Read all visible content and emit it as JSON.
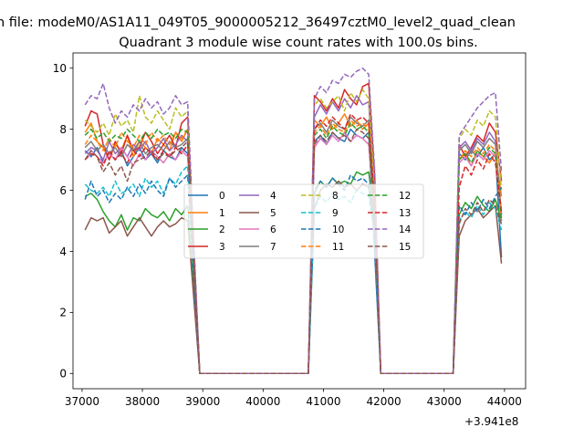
{
  "figure": {
    "suptitle": "n file: modeM0/AS1A11_049T05_9000005212_36497cztM0_level2_quad_clean",
    "title": "Quadrant 3 module wise count rates with 100.0s bins.",
    "offset_label": "+3.941e8"
  },
  "chart_data": {
    "type": "line",
    "title": "Quadrant 3 module wise count rates with 100.0s bins.",
    "xlabel": "",
    "ylabel": "",
    "x_offset_label": "+3.941e8",
    "xlim": [
      36850,
      44350
    ],
    "ylim": [
      -0.5,
      10.5
    ],
    "xticks": [
      37000,
      38000,
      39000,
      40000,
      41000,
      42000,
      43000,
      44000
    ],
    "xtick_labels": [
      "37000",
      "38000",
      "39000",
      "40000",
      "41000",
      "42000",
      "43000",
      "44000"
    ],
    "yticks": [
      0,
      2,
      4,
      6,
      8,
      10
    ],
    "ytick_labels": [
      "0",
      "2",
      "4",
      "6",
      "8",
      "10"
    ],
    "grid": false,
    "legend": {
      "placement": "center",
      "ncol": 4
    },
    "segments": [
      {
        "start": 37050,
        "n": 18
      },
      {
        "start": 40850,
        "n": 11
      },
      {
        "start": 43250,
        "n": 8
      }
    ],
    "zero_gaps": [
      [
        38950,
        40750
      ],
      [
        41950,
        43150
      ]
    ],
    "series": [
      {
        "name": "0",
        "color": "#1f77b4",
        "dash": false,
        "values": [
          [
            7.3,
            7.1,
            7.4,
            6.9,
            7.2,
            7.0,
            7.3,
            6.8,
            7.1,
            7.4,
            7.0,
            7.2,
            6.9,
            7.3,
            7.1,
            7.0,
            7.4,
            7.2
          ],
          [
            7.6,
            7.8,
            7.5,
            7.9,
            7.7,
            7.6,
            8.0,
            7.8,
            7.7,
            7.9,
            3.9
          ],
          [
            7.2,
            7.0,
            7.3,
            7.1,
            7.4,
            7.0,
            7.2,
            3.8
          ]
        ]
      },
      {
        "name": "1",
        "color": "#ff7f0e",
        "dash": false,
        "values": [
          [
            7.9,
            8.2,
            7.6,
            7.4,
            7.0,
            7.5,
            7.3,
            7.8,
            7.1,
            7.6,
            7.4,
            7.2,
            7.7,
            7.5,
            7.3,
            7.9,
            7.6,
            8.0
          ],
          [
            8.3,
            8.1,
            8.4,
            8.0,
            8.2,
            8.5,
            8.1,
            8.3,
            8.0,
            8.2,
            5.8
          ],
          [
            7.0,
            7.2,
            6.8,
            7.3,
            7.1,
            6.9,
            7.2,
            5.8
          ]
        ]
      },
      {
        "name": "2",
        "color": "#2ca02c",
        "dash": false,
        "values": [
          [
            5.8,
            5.9,
            5.7,
            5.3,
            5.0,
            4.8,
            5.2,
            4.7,
            5.1,
            5.0,
            5.4,
            5.2,
            5.1,
            5.3,
            5.0,
            5.4,
            5.2,
            5.5
          ],
          [
            5.9,
            6.3,
            6.1,
            6.4,
            6.2,
            6.3,
            6.2,
            6.6,
            6.5,
            6.6,
            5.0
          ],
          [
            5.2,
            5.6,
            5.4,
            5.8,
            5.5,
            5.3,
            5.7,
            5.0
          ]
        ]
      },
      {
        "name": "3",
        "color": "#d62728",
        "dash": false,
        "values": [
          [
            8.1,
            8.6,
            8.5,
            7.5,
            7.0,
            7.6,
            7.2,
            7.8,
            7.3,
            7.4,
            7.9,
            7.6,
            7.2,
            7.5,
            7.8,
            7.4,
            8.2,
            8.4
          ],
          [
            9.1,
            8.9,
            8.6,
            9.0,
            8.7,
            9.3,
            9.0,
            8.8,
            9.4,
            9.5,
            6.4
          ],
          [
            7.5,
            7.1,
            7.4,
            7.8,
            7.6,
            8.2,
            7.9,
            6.3
          ]
        ]
      },
      {
        "name": "4",
        "color": "#9467bd",
        "dash": false,
        "values": [
          [
            7.2,
            7.4,
            7.3,
            7.0,
            7.6,
            7.2,
            7.4,
            7.1,
            7.5,
            7.3,
            7.6,
            7.2,
            7.4,
            7.7,
            7.3,
            7.5,
            7.8,
            7.6
          ],
          [
            8.4,
            8.8,
            8.5,
            8.9,
            8.6,
            9.0,
            8.7,
            9.1,
            8.8,
            8.9,
            5.2
          ],
          [
            7.4,
            7.6,
            7.3,
            7.7,
            7.5,
            7.9,
            7.6,
            5.2
          ]
        ]
      },
      {
        "name": "5",
        "color": "#8c564b",
        "dash": false,
        "values": [
          [
            4.7,
            5.1,
            5.0,
            5.1,
            4.6,
            4.8,
            5.0,
            4.5,
            4.8,
            5.1,
            4.8,
            4.5,
            4.8,
            5.0,
            4.8,
            4.9,
            5.1,
            5.0
          ],
          [
            5.4,
            6.0,
            6.2,
            6.1,
            6.3,
            6.1,
            6.2,
            6.0,
            6.2,
            6.1,
            4.6
          ],
          [
            4.5,
            5.0,
            5.2,
            5.4,
            5.1,
            5.3,
            5.5,
            3.6
          ]
        ]
      },
      {
        "name": "6",
        "color": "#e377c2",
        "dash": false,
        "values": [
          [
            7.0,
            7.3,
            7.1,
            6.9,
            7.2,
            7.0,
            7.4,
            7.1,
            6.8,
            7.2,
            7.0,
            7.3,
            7.1,
            6.9,
            7.2,
            7.0,
            7.3,
            7.1
          ],
          [
            7.4,
            7.7,
            7.5,
            7.8,
            7.6,
            7.9,
            7.6,
            7.8,
            7.7,
            7.5,
            5.0
          ],
          [
            6.9,
            7.1,
            6.8,
            7.2,
            7.0,
            7.3,
            7.1,
            5.0
          ]
        ]
      },
      {
        "name": "7",
        "color": "#7f7f7f",
        "dash": false,
        "values": [
          [
            7.4,
            7.6,
            7.3,
            7.5,
            7.2,
            7.4,
            7.1,
            7.5,
            7.3,
            7.6,
            7.2,
            7.4,
            7.5,
            7.3,
            7.6,
            7.4,
            7.5,
            7.7
          ],
          [
            8.0,
            8.2,
            7.9,
            8.3,
            8.1,
            8.0,
            8.4,
            8.2,
            8.1,
            8.3,
            5.4
          ],
          [
            7.3,
            7.5,
            7.2,
            7.6,
            7.4,
            7.7,
            7.5,
            5.2
          ]
        ]
      },
      {
        "name": "8",
        "color": "#bcbd22",
        "dash": true,
        "values": [
          [
            8.3,
            8.1,
            7.9,
            8.2,
            7.8,
            8.5,
            8.1,
            8.3,
            7.9,
            9.1,
            8.4,
            8.2,
            8.6,
            8.3,
            8.0,
            8.7,
            8.4,
            8.6
          ],
          [
            8.8,
            9.0,
            8.7,
            8.9,
            9.1,
            8.6,
            9.2,
            8.9,
            9.3,
            9.0,
            5.9
          ],
          [
            7.7,
            8.0,
            7.8,
            8.3,
            8.1,
            8.6,
            8.4,
            6.0
          ]
        ]
      },
      {
        "name": "9",
        "color": "#17becf",
        "dash": true,
        "values": [
          [
            6.2,
            6.0,
            5.9,
            6.1,
            5.8,
            6.3,
            5.9,
            6.0,
            6.2,
            5.8,
            6.4,
            6.1,
            6.3,
            5.9,
            6.4,
            6.2,
            6.6,
            6.8
          ],
          [
            5.4,
            5.8,
            5.6,
            5.9,
            5.7,
            5.8,
            5.6,
            6.0,
            5.9,
            5.8,
            4.5
          ],
          [
            5.0,
            5.3,
            5.1,
            5.5,
            5.2,
            5.6,
            5.4,
            4.7
          ]
        ]
      },
      {
        "name": "10",
        "color": "#1f77b4",
        "dash": true,
        "values": [
          [
            5.7,
            6.3,
            5.8,
            6.0,
            5.6,
            5.9,
            5.7,
            6.1,
            5.8,
            6.2,
            5.9,
            6.3,
            6.0,
            5.8,
            6.4,
            6.1,
            6.3,
            6.5
          ],
          [
            6.0,
            6.3,
            6.1,
            6.4,
            6.2,
            6.0,
            6.5,
            6.3,
            6.4,
            6.2,
            4.8
          ],
          [
            5.5,
            5.2,
            5.6,
            5.3,
            5.7,
            5.4,
            5.8,
            6.1
          ]
        ]
      },
      {
        "name": "11",
        "color": "#ff7f0e",
        "dash": true,
        "values": [
          [
            7.5,
            7.8,
            7.6,
            7.3,
            7.7,
            7.4,
            7.9,
            7.6,
            7.4,
            7.8,
            7.5,
            7.9,
            7.6,
            7.8,
            7.5,
            7.9,
            7.7,
            8.0
          ],
          [
            7.9,
            8.1,
            7.8,
            8.2,
            8.0,
            7.9,
            8.3,
            8.1,
            8.2,
            8.0,
            5.3
          ],
          [
            7.0,
            7.3,
            7.1,
            7.4,
            7.2,
            7.5,
            7.3,
            5.1
          ]
        ]
      },
      {
        "name": "12",
        "color": "#2ca02c",
        "dash": true,
        "values": [
          [
            7.8,
            8.0,
            7.7,
            7.9,
            7.6,
            7.8,
            7.7,
            8.0,
            7.8,
            7.6,
            7.9,
            7.7,
            8.0,
            7.8,
            7.9,
            7.7,
            8.0,
            7.9
          ],
          [
            7.8,
            8.0,
            7.7,
            8.1,
            7.9,
            7.8,
            8.2,
            8.0,
            8.1,
            7.9,
            5.2
          ],
          [
            7.0,
            7.2,
            6.9,
            7.3,
            7.1,
            7.4,
            7.2,
            5.0
          ]
        ]
      },
      {
        "name": "13",
        "color": "#d62728",
        "dash": true,
        "values": [
          [
            7.0,
            7.2,
            7.1,
            6.8,
            7.3,
            7.0,
            7.2,
            6.9,
            7.3,
            7.1,
            7.4,
            7.2,
            7.0,
            7.3,
            7.1,
            7.4,
            7.2,
            7.5
          ],
          [
            8.0,
            8.3,
            8.1,
            8.4,
            8.2,
            8.0,
            8.5,
            8.3,
            8.4,
            8.2,
            5.6
          ],
          [
            6.1,
            6.8,
            6.5,
            7.0,
            6.7,
            7.2,
            6.9,
            5.3
          ]
        ]
      },
      {
        "name": "14",
        "color": "#9467bd",
        "dash": true,
        "values": [
          [
            8.8,
            9.1,
            9.0,
            9.5,
            8.7,
            8.2,
            8.6,
            8.4,
            8.8,
            8.6,
            9.0,
            8.7,
            8.9,
            8.5,
            8.7,
            9.1,
            8.8,
            8.9
          ],
          [
            9.0,
            9.4,
            9.2,
            9.6,
            9.5,
            9.8,
            9.7,
            9.9,
            10.0,
            9.8,
            6.6
          ],
          [
            7.8,
            8.1,
            8.4,
            8.7,
            8.9,
            9.1,
            9.2,
            6.6
          ]
        ]
      },
      {
        "name": "15",
        "color": "#8c564b",
        "dash": true,
        "values": [
          [
            7.0,
            7.3,
            7.1,
            6.6,
            6.9,
            6.5,
            6.8,
            6.3,
            6.9,
            7.0,
            7.1,
            7.3,
            7.0,
            7.2,
            7.1,
            7.3,
            7.4,
            7.6
          ],
          [
            7.5,
            7.8,
            7.6,
            7.9,
            7.7,
            7.8,
            7.6,
            8.0,
            7.9,
            7.7,
            5.0
          ],
          [
            4.9,
            5.4,
            5.2,
            5.6,
            5.3,
            5.7,
            5.5,
            4.9
          ]
        ]
      }
    ]
  }
}
